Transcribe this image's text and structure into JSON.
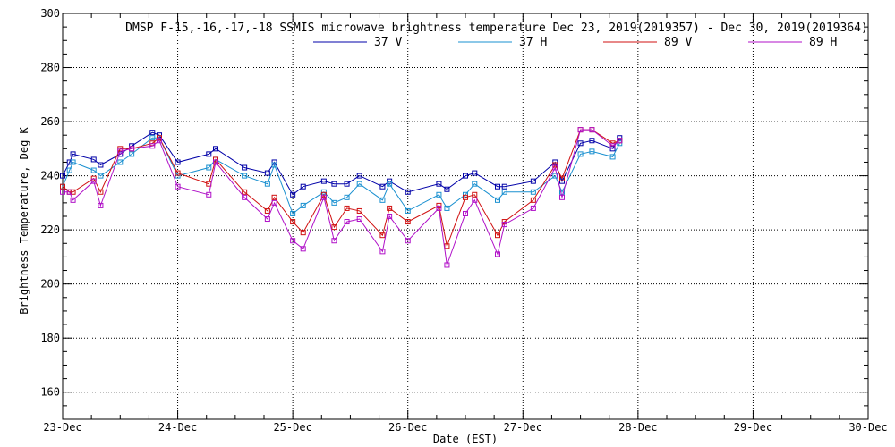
{
  "chart_data": {
    "type": "line",
    "title": "DMSP F-15,-16,-17,-18 SSMIS microwave brightness temperature Dec 23, 2019(2019357) - Dec 30, 2019(2019364)",
    "xlabel": "Date (EST)",
    "ylabel": "Brightness Temperature, Deg K",
    "xlim": [
      0,
      7
    ],
    "ylim": [
      150,
      300
    ],
    "x_tick_labels": [
      "23-Dec",
      "24-Dec",
      "25-Dec",
      "26-Dec",
      "27-Dec",
      "28-Dec",
      "29-Dec",
      "30-Dec"
    ],
    "y_ticks": [
      160,
      180,
      200,
      220,
      240,
      260,
      280,
      300
    ],
    "grid": true,
    "legend_position": "top-center",
    "series": [
      {
        "name": "37 V",
        "color": "#0000a8",
        "points": [
          [
            0,
            240
          ],
          [
            0.06,
            245
          ],
          [
            0.09,
            248
          ],
          [
            0.27,
            246
          ],
          [
            0.33,
            244
          ],
          [
            0.5,
            248
          ],
          [
            0.6,
            251
          ],
          [
            0.78,
            256
          ],
          [
            0.84,
            255
          ],
          [
            1.0,
            245
          ],
          [
            1.27,
            248
          ],
          [
            1.33,
            250
          ],
          [
            1.58,
            243
          ],
          [
            1.78,
            241
          ],
          [
            1.84,
            245
          ],
          [
            2.0,
            233
          ],
          [
            2.09,
            236
          ],
          [
            2.27,
            238
          ],
          [
            2.36,
            237
          ],
          [
            2.47,
            237
          ],
          [
            2.58,
            240
          ],
          [
            2.78,
            236
          ],
          [
            2.84,
            238
          ],
          [
            3.0,
            234
          ],
          [
            3.27,
            237
          ],
          [
            3.34,
            235
          ],
          [
            3.5,
            240
          ],
          [
            3.58,
            241
          ],
          [
            3.78,
            236
          ],
          [
            3.84,
            236
          ],
          [
            4.09,
            238
          ],
          [
            4.28,
            245
          ],
          [
            4.34,
            238
          ],
          [
            4.5,
            252
          ],
          [
            4.6,
            253
          ],
          [
            4.78,
            250
          ],
          [
            4.84,
            254
          ]
        ]
      },
      {
        "name": "37 H",
        "color": "#1a90d0",
        "points": [
          [
            0,
            236
          ],
          [
            0.06,
            242
          ],
          [
            0.09,
            245
          ],
          [
            0.27,
            242
          ],
          [
            0.33,
            240
          ],
          [
            0.5,
            245
          ],
          [
            0.6,
            248
          ],
          [
            0.78,
            254
          ],
          [
            0.84,
            254
          ],
          [
            1.0,
            240
          ],
          [
            1.27,
            243
          ],
          [
            1.33,
            246
          ],
          [
            1.58,
            240
          ],
          [
            1.78,
            237
          ],
          [
            1.84,
            244
          ],
          [
            2.0,
            226
          ],
          [
            2.09,
            229
          ],
          [
            2.27,
            234
          ],
          [
            2.36,
            230
          ],
          [
            2.47,
            232
          ],
          [
            2.58,
            237
          ],
          [
            2.78,
            231
          ],
          [
            2.84,
            237
          ],
          [
            3.0,
            227
          ],
          [
            3.27,
            233
          ],
          [
            3.34,
            228
          ],
          [
            3.5,
            233
          ],
          [
            3.58,
            237
          ],
          [
            3.78,
            231
          ],
          [
            3.84,
            234
          ],
          [
            4.09,
            234
          ],
          [
            4.28,
            240
          ],
          [
            4.34,
            234
          ],
          [
            4.5,
            248
          ],
          [
            4.6,
            249
          ],
          [
            4.78,
            247
          ],
          [
            4.84,
            252
          ]
        ]
      },
      {
        "name": "89 V",
        "color": "#d01010",
        "points": [
          [
            0,
            236
          ],
          [
            0.06,
            234
          ],
          [
            0.09,
            234
          ],
          [
            0.27,
            239
          ],
          [
            0.33,
            234
          ],
          [
            0.5,
            250
          ],
          [
            0.6,
            250
          ],
          [
            0.78,
            252
          ],
          [
            0.84,
            254
          ],
          [
            1.0,
            241
          ],
          [
            1.27,
            237
          ],
          [
            1.33,
            246
          ],
          [
            1.58,
            234
          ],
          [
            1.78,
            227
          ],
          [
            1.84,
            232
          ],
          [
            2.0,
            223
          ],
          [
            2.09,
            219
          ],
          [
            2.27,
            233
          ],
          [
            2.36,
            221
          ],
          [
            2.47,
            228
          ],
          [
            2.58,
            227
          ],
          [
            2.78,
            218
          ],
          [
            2.84,
            228
          ],
          [
            3.0,
            223
          ],
          [
            3.27,
            229
          ],
          [
            3.34,
            214
          ],
          [
            3.5,
            232
          ],
          [
            3.58,
            233
          ],
          [
            3.78,
            218
          ],
          [
            3.84,
            223
          ],
          [
            4.09,
            231
          ],
          [
            4.28,
            244
          ],
          [
            4.34,
            239
          ],
          [
            4.5,
            257
          ],
          [
            4.6,
            257
          ],
          [
            4.78,
            252
          ],
          [
            4.84,
            253
          ]
        ]
      },
      {
        "name": "89 H",
        "color": "#b010c8",
        "points": [
          [
            0,
            234
          ],
          [
            0.06,
            234
          ],
          [
            0.09,
            231
          ],
          [
            0.27,
            238
          ],
          [
            0.33,
            229
          ],
          [
            0.5,
            249
          ],
          [
            0.6,
            250
          ],
          [
            0.78,
            251
          ],
          [
            0.84,
            253
          ],
          [
            1.0,
            236
          ],
          [
            1.27,
            233
          ],
          [
            1.33,
            245
          ],
          [
            1.58,
            232
          ],
          [
            1.78,
            224
          ],
          [
            1.84,
            230
          ],
          [
            2.0,
            216
          ],
          [
            2.09,
            213
          ],
          [
            2.27,
            232
          ],
          [
            2.36,
            216
          ],
          [
            2.47,
            223
          ],
          [
            2.58,
            224
          ],
          [
            2.78,
            212
          ],
          [
            2.84,
            225
          ],
          [
            3.0,
            216
          ],
          [
            3.27,
            228
          ],
          [
            3.34,
            207
          ],
          [
            3.5,
            226
          ],
          [
            3.58,
            231
          ],
          [
            3.78,
            211
          ],
          [
            3.84,
            222
          ],
          [
            4.09,
            228
          ],
          [
            4.28,
            243
          ],
          [
            4.34,
            232
          ],
          [
            4.5,
            257
          ],
          [
            4.6,
            257
          ],
          [
            4.78,
            251
          ],
          [
            4.84,
            253
          ]
        ]
      }
    ]
  }
}
